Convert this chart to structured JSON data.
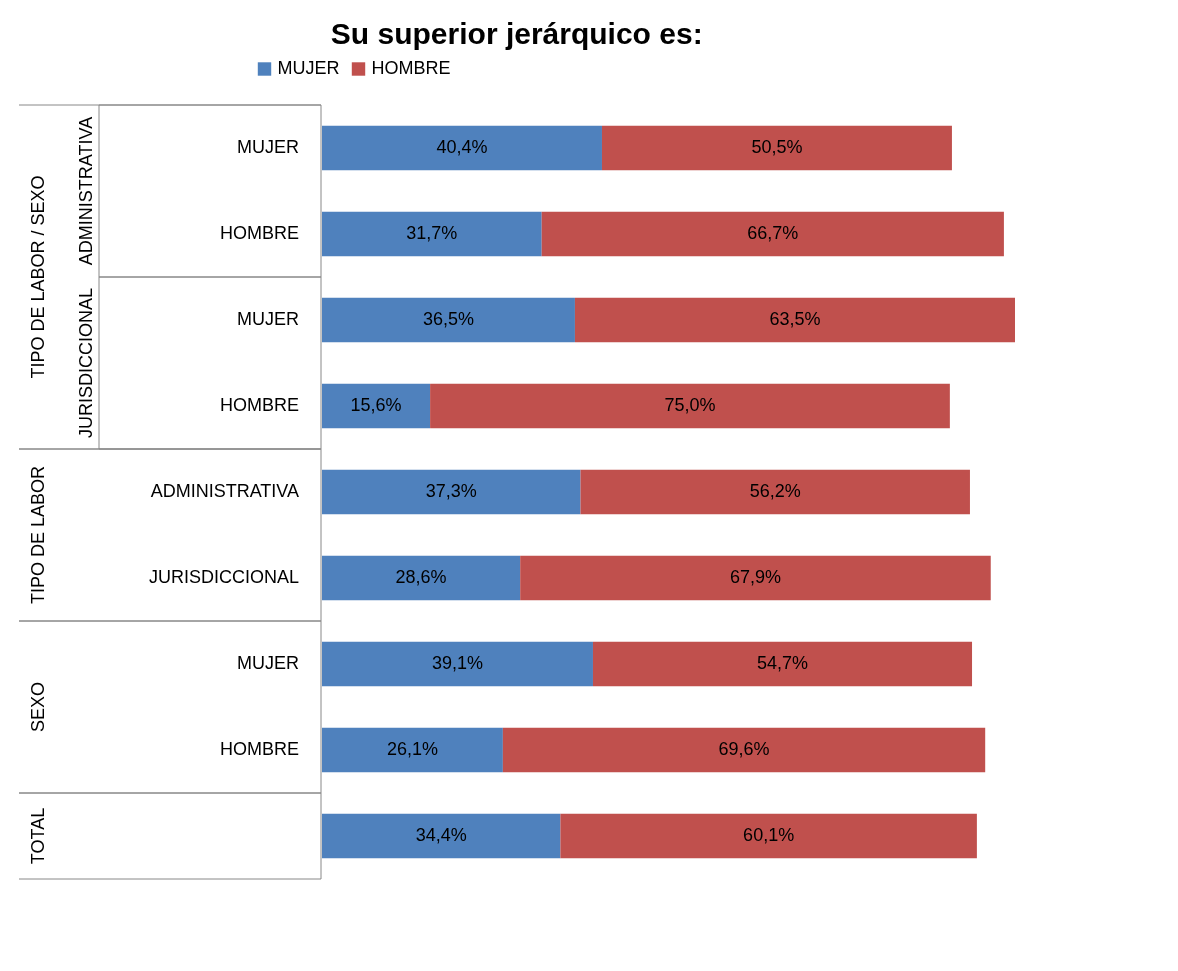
{
  "chart_data": {
    "type": "bar",
    "orientation": "horizontal",
    "stacked": true,
    "title": "Su superior jerárquico es:",
    "categories": [
      "MUJER",
      "HOMBRE",
      "MUJER",
      "HOMBRE",
      "ADMINISTRATIVA",
      "JURISDICCIONAL",
      "MUJER",
      "HOMBRE",
      null
    ],
    "series": [
      {
        "name": "MUJER",
        "color": "#4f81bd",
        "values": [
          40.4,
          31.7,
          36.5,
          15.6,
          37.3,
          28.6,
          39.1,
          26.1,
          34.4
        ],
        "value_labels": [
          "40,4%",
          "31,7%",
          "36,5%",
          "15,6%",
          "37,3%",
          "28,6%",
          "39,1%",
          "26,1%",
          "34,4%"
        ]
      },
      {
        "name": "HOMBRE",
        "color": "#c0504d",
        "values": [
          50.5,
          66.7,
          63.5,
          75.0,
          56.2,
          67.9,
          54.7,
          69.6,
          60.1
        ],
        "value_labels": [
          "50,5%",
          "66,7%",
          "63,5%",
          "75,0%",
          "56,2%",
          "67,9%",
          "54,7%",
          "69,6%",
          "60,1%"
        ]
      }
    ],
    "annotations": [
      "TIPO DE LABOR / SEXO",
      "ADMINISTRATIVA",
      "JURISDICCIONAL",
      "TIPO DE LABOR",
      "SEXO",
      "TOTAL"
    ],
    "legend": "top"
  }
}
